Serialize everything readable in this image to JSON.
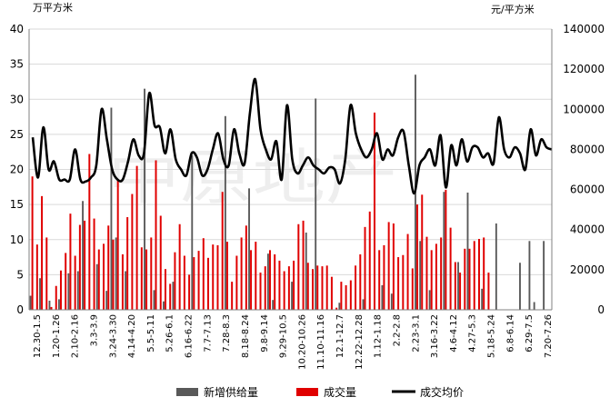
{
  "chart_data": {
    "type": "bar",
    "left_unit": "万平方米",
    "right_unit": "元/平方米",
    "watermark": "中原地产",
    "y_left": {
      "min": 0,
      "max": 40,
      "ticks": [
        "0",
        "5",
        "10",
        "15",
        "20",
        "25",
        "30",
        "35",
        "40"
      ]
    },
    "y_right": {
      "min": 0,
      "max": 140000,
      "ticks": [
        "0",
        "20000",
        "40000",
        "60000",
        "80000",
        "100000",
        "120000",
        "140000"
      ]
    },
    "x_tick_labels": [
      "12.30-1.5",
      "1.20-1.26",
      "2.10-2.16",
      "3.3-3.9",
      "3.24-3.30",
      "4.14-4.20",
      "5.5-5.11",
      "5.26-6.1",
      "6.16-6.22",
      "7.7-7.13",
      "7.28-8.3",
      "8.18-8.24",
      "9.8-9.14",
      "9.29-10.5",
      "10.20-10.26",
      "11.10-11.16",
      "12.1-12.7",
      "12.22-12.28",
      "1.12-1.18",
      "2.2-2.8",
      "2.23-3.1",
      "3.16-3.22",
      "4.6-4.12",
      "4.27-5.3",
      "5.18-5.24",
      "6.8-6.14",
      "6.29-7.5",
      "7.20-7.26"
    ],
    "legend": [
      {
        "name": "新增供给量",
        "color": "#595959",
        "kind": "bar"
      },
      {
        "name": "成交量",
        "color": "#e00000",
        "kind": "bar"
      },
      {
        "name": "成交均价",
        "color": "#000000",
        "kind": "line"
      }
    ],
    "series": [
      {
        "name": "新增供给量",
        "axis": "left",
        "values": [
          2,
          0,
          4.5,
          0,
          1.3,
          0,
          1.5,
          0,
          5.2,
          0,
          5.5,
          15.5,
          0,
          0,
          6.5,
          0,
          2.7,
          28.8,
          10.3,
          0,
          5.5,
          0,
          0,
          0,
          31.5,
          0,
          2.8,
          0,
          1.2,
          0,
          4,
          0,
          0,
          0,
          22,
          0,
          0,
          0,
          0,
          0,
          0,
          27.6,
          0,
          0,
          0,
          0,
          17.3,
          0,
          0,
          0,
          8,
          1.4,
          0,
          0,
          0,
          4,
          0,
          0,
          11,
          0,
          30.1,
          0,
          0,
          0,
          0,
          1,
          0,
          0,
          0,
          0,
          1.5,
          0,
          0,
          0,
          3.5,
          0,
          2.3,
          0,
          0,
          0,
          0,
          33.5,
          9.8,
          0,
          2.8,
          0,
          0,
          16.8,
          0,
          0,
          6.8,
          0,
          16.7,
          0,
          0,
          3,
          0,
          0,
          12.3,
          0,
          0,
          0,
          0,
          6.7,
          0,
          9.8,
          1.1,
          0,
          9.8,
          0
        ]
      },
      {
        "name": "成交量",
        "axis": "left",
        "values": [
          19,
          9.3,
          16.2,
          10.3,
          0.4,
          3.4,
          5.6,
          8.1,
          13.7,
          7.7,
          12.1,
          12.7,
          22.2,
          13,
          8.6,
          9.4,
          12,
          10,
          18.6,
          7.9,
          13.2,
          16.5,
          20.5,
          8.9,
          8.6,
          10.3,
          21.3,
          13.4,
          5.8,
          3.7,
          8.2,
          12.2,
          7.7,
          5,
          7.5,
          8.4,
          10.2,
          7.4,
          9.3,
          9.2,
          16.8,
          9.7,
          4,
          7.7,
          10.3,
          12,
          8.5,
          9.7,
          5.3,
          6.2,
          8.5,
          7.9,
          7,
          5.5,
          6.2,
          7,
          12.2,
          12.7,
          6.7,
          5.8,
          6.3,
          6.2,
          6.3,
          4.7,
          0.3,
          4,
          3.5,
          4.2,
          6.3,
          7.9,
          11.8,
          14,
          28.1,
          8.5,
          9.2,
          12.5,
          12.3,
          7.5,
          7.8,
          10.8,
          5.9,
          15,
          16.4,
          10.4,
          8.5,
          9.4,
          10.3,
          17.1,
          11.7,
          6.8,
          5.3,
          8.7,
          8.7,
          9.8,
          10.1,
          10.3,
          5.3,
          0,
          0,
          0,
          0,
          0,
          0,
          0,
          0,
          0,
          0,
          0,
          0
        ]
      },
      {
        "name": "成交均价",
        "axis": "right",
        "values": [
          86000,
          66000,
          91000,
          70000,
          74000,
          65000,
          65000,
          65000,
          80000,
          65000,
          64000,
          66000,
          72000,
          100000,
          85000,
          70000,
          65000,
          65000,
          74000,
          85000,
          77000,
          78000,
          108000,
          92000,
          91000,
          78000,
          90000,
          75000,
          70000,
          67000,
          78000,
          76000,
          67000,
          70000,
          80000,
          88000,
          75000,
          72000,
          90000,
          78000,
          73000,
          98000,
          115000,
          90000,
          80000,
          75000,
          84000,
          65000,
          102000,
          75000,
          68000,
          72000,
          76000,
          72000,
          70000,
          68000,
          71000,
          70000,
          63000,
          75000,
          102000,
          88000,
          80000,
          76000,
          80000,
          88000,
          75000,
          80000,
          77000,
          86000,
          89000,
          72000,
          58000,
          72000,
          76000,
          80000,
          72000,
          87000,
          61000,
          82000,
          72000,
          85000,
          74000,
          81000,
          81000,
          76000,
          78000,
          73000,
          96000,
          80000,
          76000,
          81000,
          78000,
          70000,
          90000,
          77000,
          85000,
          81000,
          80000
        ]
      }
    ]
  }
}
